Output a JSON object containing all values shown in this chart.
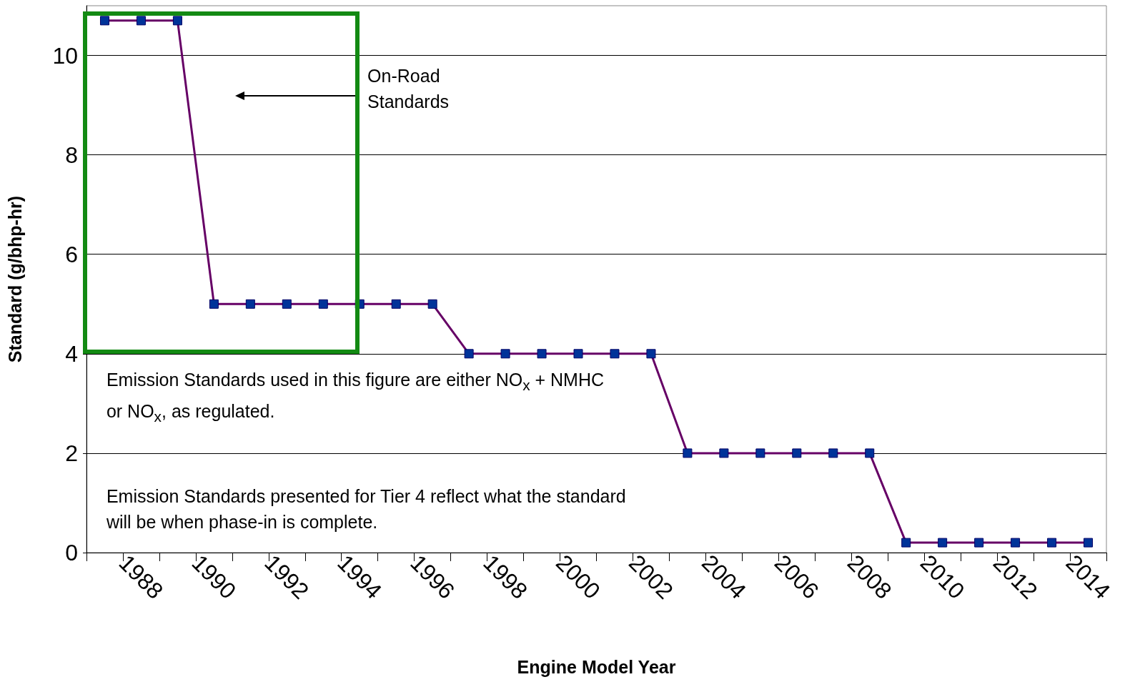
{
  "chart_data": {
    "type": "line",
    "xlabel": "Engine Model Year",
    "ylabel": "Standard (g/bhp-hr)",
    "categories": [
      null,
      "1988",
      null,
      "1990",
      null,
      "1992",
      null,
      "1994",
      null,
      "1996",
      null,
      "1998",
      null,
      "2000",
      null,
      "2002",
      null,
      "2004",
      null,
      "2006",
      null,
      "2008",
      null,
      "2010",
      null,
      "2012",
      null,
      "2014"
    ],
    "series": [
      {
        "color": "#660066",
        "values": [
          10.7,
          10.7,
          10.7,
          5,
          5,
          5,
          5,
          5,
          5,
          5,
          4,
          4,
          4,
          4,
          4,
          4,
          2,
          2,
          2,
          2,
          2,
          2,
          0.2,
          0.2,
          0.2,
          0.2,
          0.2,
          0.2
        ]
      }
    ],
    "ylim": [
      0,
      11
    ],
    "yticks": [
      0,
      2,
      4,
      6,
      8,
      10
    ],
    "grid": "y",
    "marker": "square",
    "line_style": "solid",
    "annotations": [
      "On-Road Standards",
      "Emission Standards used in this figure are either NO$_{x}$ + NMHC or NO$_{x}$, as regulated.",
      "Emission Standards presented for Tier 4 reflect what the standard will be when phase-in is complete."
    ]
  }
}
